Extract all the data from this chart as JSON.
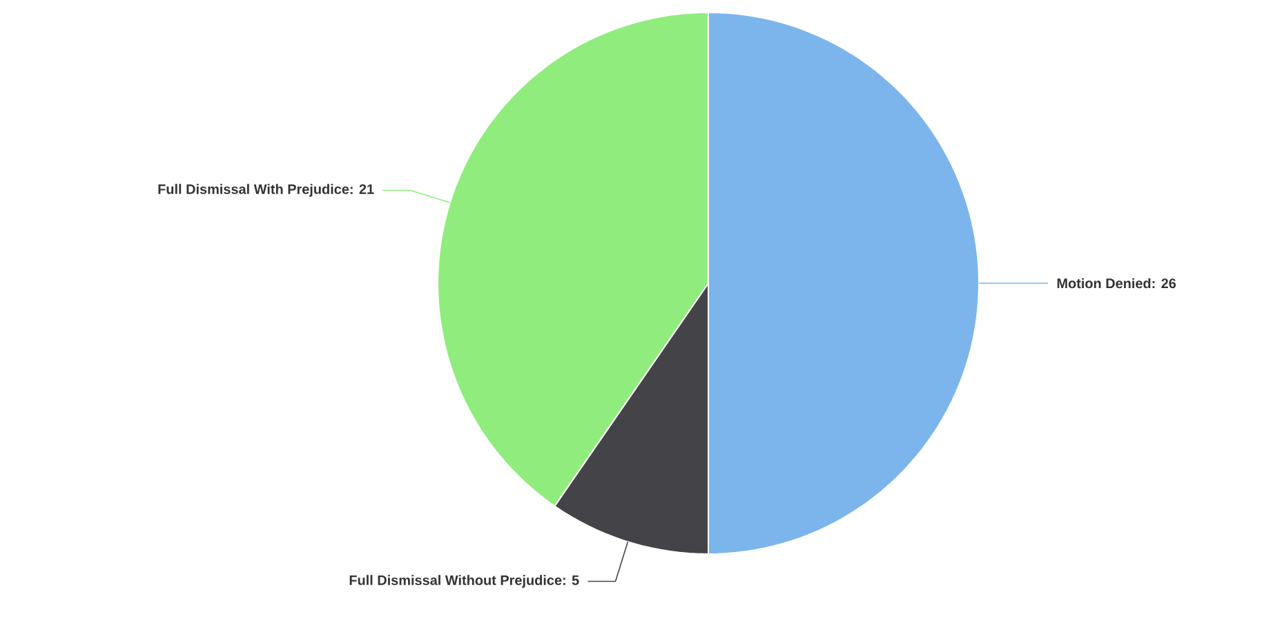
{
  "chart_data": {
    "type": "pie",
    "categories": [
      "Motion Denied",
      "Full Dismissal Without Prejudice",
      "Full Dismissal With Prejudice"
    ],
    "values": [
      26,
      5,
      21
    ],
    "colors": [
      "#7cb5ec",
      "#434348",
      "#90ed7d"
    ],
    "value_labels": [
      ": 26",
      ": 5",
      ": 21"
    ],
    "legend": false
  }
}
